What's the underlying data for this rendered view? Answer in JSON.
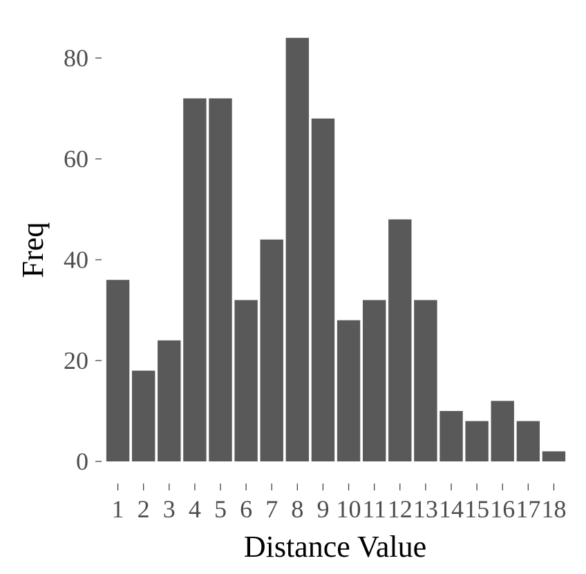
{
  "chart_data": {
    "type": "bar",
    "title": "",
    "xlabel": "Distance Value",
    "ylabel": "Freq",
    "categories": [
      "1",
      "2",
      "3",
      "4",
      "5",
      "6",
      "7",
      "8",
      "9",
      "10",
      "11",
      "12",
      "13",
      "14",
      "15",
      "16",
      "17",
      "18"
    ],
    "values": [
      36,
      18,
      24,
      72,
      72,
      32,
      44,
      84,
      68,
      28,
      32,
      48,
      32,
      10,
      8,
      12,
      8,
      2
    ],
    "ylim": [
      0,
      84
    ],
    "yticks": [
      0,
      20,
      40,
      60,
      80
    ],
    "grid": false,
    "bar_color": "#595959"
  }
}
